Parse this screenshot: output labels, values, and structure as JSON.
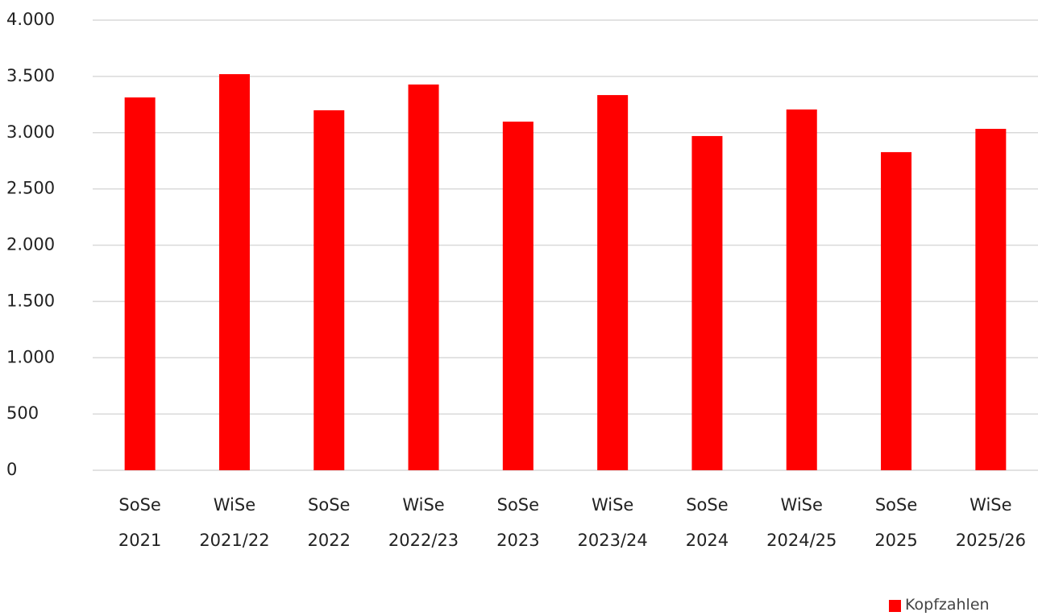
{
  "chart_data": {
    "type": "bar",
    "categories": [
      "SoSe\n2021",
      "WiSe\n2021/22",
      "SoSe\n2022",
      "WiSe\n2022/23",
      "SoSe\n2023",
      "WiSe\n2023/24",
      "SoSe\n2024",
      "WiSe\n2024/25",
      "SoSe\n2025",
      "WiSe\n2025/26"
    ],
    "series": [
      {
        "name": "Kopfzahlen",
        "color": "#ff0000",
        "values": [
          3313,
          3520,
          3199,
          3428,
          3098,
          3334,
          2970,
          3206,
          2827,
          3034
        ]
      }
    ],
    "ylim": [
      0,
      4000
    ],
    "yticks": [
      {
        "value": 0,
        "label": "0"
      },
      {
        "value": 500,
        "label": "500"
      },
      {
        "value": 1000,
        "label": "1.000"
      },
      {
        "value": 1500,
        "label": "1.500"
      },
      {
        "value": 2000,
        "label": "2.000"
      },
      {
        "value": 2500,
        "label": "2.500"
      },
      {
        "value": 3000,
        "label": "3.000"
      },
      {
        "value": 3500,
        "label": "3.500"
      },
      {
        "value": 4000,
        "label": "4.000"
      }
    ],
    "grid": true,
    "legend": "bottom-right"
  }
}
